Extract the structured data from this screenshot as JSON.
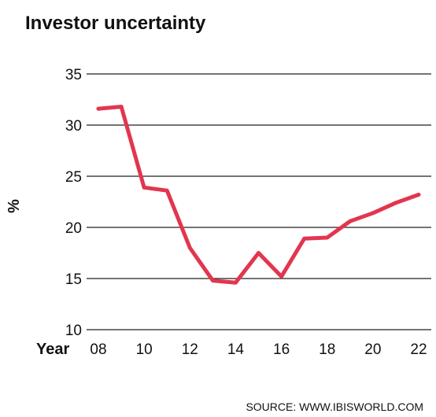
{
  "chart_data": {
    "type": "line",
    "title": "Investor uncertainty",
    "ylabel": "%",
    "xlabel": "Year",
    "source": "SOURCE: WWW.IBISWORLD.COM",
    "ylim": [
      10,
      35
    ],
    "yticks": [
      10,
      15,
      20,
      25,
      30,
      35
    ],
    "xlim": [
      2008,
      2022
    ],
    "xticks": [
      {
        "value": 2008,
        "label": "08"
      },
      {
        "value": 2010,
        "label": "10"
      },
      {
        "value": 2012,
        "label": "12"
      },
      {
        "value": 2014,
        "label": "14"
      },
      {
        "value": 2016,
        "label": "16"
      },
      {
        "value": 2018,
        "label": "18"
      },
      {
        "value": 2020,
        "label": "20"
      },
      {
        "value": 2022,
        "label": "22"
      }
    ],
    "grid": true,
    "series": [
      {
        "color": "#e2364f",
        "x": [
          2008,
          2009,
          2010,
          2011,
          2012,
          2013,
          2014,
          2015,
          2016,
          2017,
          2018,
          2019,
          2020,
          2021,
          2022
        ],
        "values": [
          31.6,
          31.8,
          23.9,
          23.6,
          18.0,
          14.8,
          14.6,
          17.5,
          15.2,
          18.9,
          19.0,
          20.6,
          21.4,
          22.4,
          23.2
        ]
      }
    ]
  }
}
